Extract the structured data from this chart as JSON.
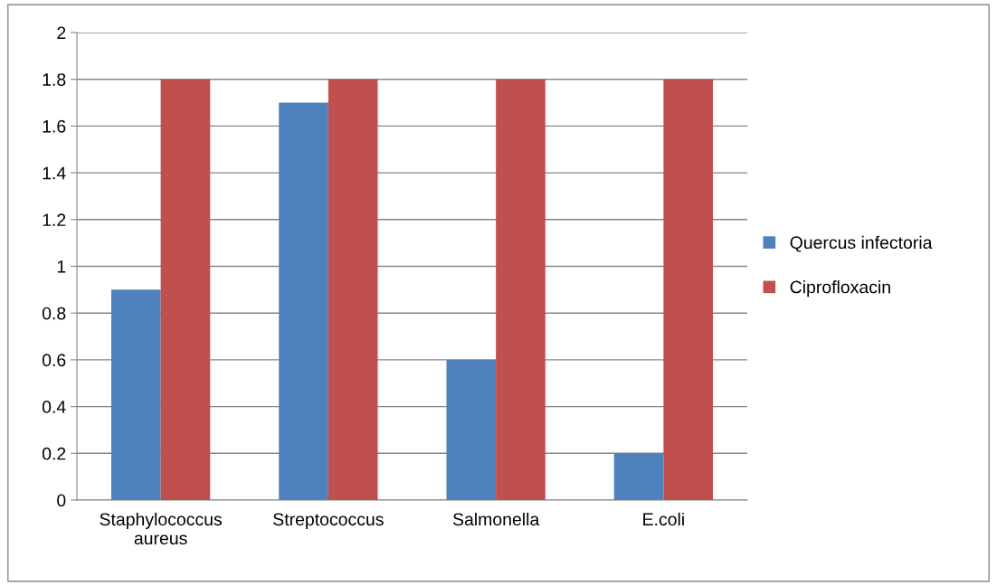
{
  "chart_data": {
    "type": "bar",
    "categories": [
      "Staphylococcus\naureus",
      "Streptococcus",
      "Salmonella",
      "E.coli"
    ],
    "series": [
      {
        "name": "Quercus infectoria",
        "color": "#4f81bd",
        "values": [
          0.9,
          1.7,
          0.6,
          0.2
        ]
      },
      {
        "name": "Ciprofloxacin",
        "color": "#c0504d",
        "values": [
          1.8,
          1.8,
          1.8,
          1.8
        ]
      }
    ],
    "ylim": [
      0,
      2
    ],
    "yticks": [
      0,
      0.2,
      0.4,
      0.6,
      0.8,
      1,
      1.2,
      1.4,
      1.6,
      1.8,
      2
    ],
    "grid": "y",
    "legend": "right"
  }
}
